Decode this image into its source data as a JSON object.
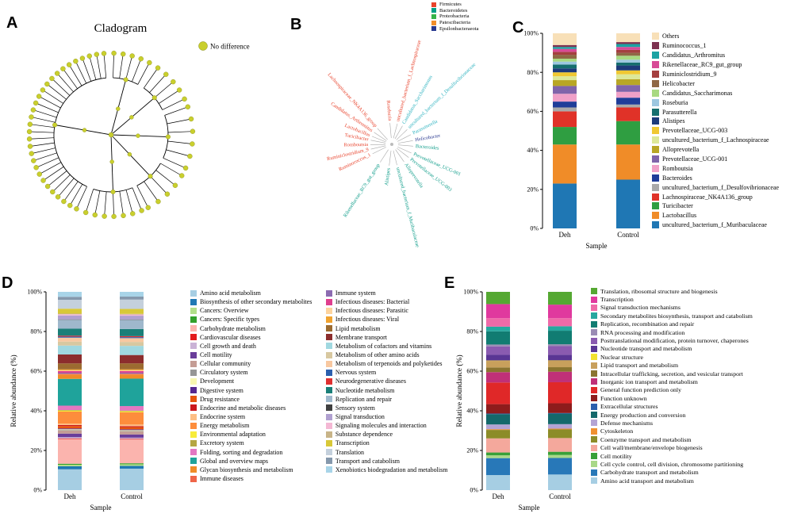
{
  "figure": {
    "panels": {
      "a": {
        "label": "A",
        "title": "Cladogram",
        "node_legend": {
          "label": "No difference",
          "color": "#c9cf2d"
        }
      },
      "b": {
        "label": "B",
        "phyla_legend": [
          {
            "label": "Firmicutes",
            "color": "#e8432c"
          },
          {
            "label": "Bacteroidetes",
            "color": "#00a087"
          },
          {
            "label": "Proteobacteria",
            "color": "#35b44a"
          },
          {
            "label": "Patescibacteria",
            "color": "#f28e2b"
          },
          {
            "label": "Epsilonbacteraeota",
            "color": "#28388f"
          }
        ],
        "taxa": [
          {
            "label": "uncultured_bacterium_f_Lachnospiraceae",
            "color": "#e8432c",
            "angle": 75
          },
          {
            "label": "Roseburia",
            "color": "#e8432c",
            "angle": 95
          },
          {
            "label": "Lachnospiraceae_NK4A136_group",
            "color": "#e8432c",
            "angle": 132
          },
          {
            "label": "Candidatus_Arthromitus",
            "color": "#e8432c",
            "angle": 146
          },
          {
            "label": "Lactobacillus",
            "color": "#e8432c",
            "angle": 158
          },
          {
            "label": "Turicibacter",
            "color": "#e8432c",
            "angle": 169
          },
          {
            "label": "Romboutsia",
            "color": "#e8432c",
            "angle": 181
          },
          {
            "label": "Ruminiclostridium_9",
            "color": "#e8432c",
            "angle": 193
          },
          {
            "label": "Ruminococcus_1",
            "color": "#e8432c",
            "angle": 206
          },
          {
            "label": "Candidatus_Saccharimonas",
            "color": "#2fb3c0",
            "angle": 60
          },
          {
            "label": "uncultured_bacterium_f_Desulfovibrionaceae",
            "color": "#2fb3c0",
            "angle": 44
          },
          {
            "label": "Parasutterella",
            "color": "#2fb3c0",
            "angle": 27
          },
          {
            "label": "Helicobacter",
            "color": "#28388f",
            "angle": 10
          },
          {
            "label": "Bacteroides",
            "color": "#0f9d8a",
            "angle": -5
          },
          {
            "label": "Prevotellaceae_UCG-001",
            "color": "#0f9d8a",
            "angle": -24
          },
          {
            "label": "Prevotellaceae_UCG-003",
            "color": "#0f9d8a",
            "angle": -38
          },
          {
            "label": "Alloprevotella",
            "color": "#0f9d8a",
            "angle": -55
          },
          {
            "label": "uncultured_bacterium_f_Muribaculaceae",
            "color": "#0f9d8a",
            "angle": -76
          },
          {
            "label": "Alistipes",
            "color": "#0f9d8a",
            "angle": -97
          },
          {
            "label": "Rikenellaceae_RC9_gut_group",
            "color": "#0f9d8a",
            "angle": -123
          }
        ]
      },
      "c": {
        "label": "C"
      },
      "d": {
        "label": "D"
      },
      "e": {
        "label": "E"
      }
    }
  },
  "chart_data": [
    {
      "id": "C",
      "type": "bar",
      "stacked": true,
      "stack_order": "reverse-legend",
      "xlabel": "Sample",
      "ylabel": "",
      "ylim": [
        0,
        100
      ],
      "yticks": [
        "0%",
        "20%",
        "40%",
        "60%",
        "80%",
        "100%"
      ],
      "samples": [
        "Deh",
        "Control"
      ],
      "categories": [
        {
          "label": "Others",
          "color": "#f8e0b8"
        },
        {
          "label": "Ruminococcus_1",
          "color": "#7d3150"
        },
        {
          "label": "Candidatus_Arthromitus",
          "color": "#1ba3a3"
        },
        {
          "label": "Rikenellaceae_RC9_gut_group",
          "color": "#d84a96"
        },
        {
          "label": "Ruminiclostridium_9",
          "color": "#a43f3f"
        },
        {
          "label": "Helicobacter",
          "color": "#8f6845"
        },
        {
          "label": "Candidatus_Saccharimonas",
          "color": "#a8d982"
        },
        {
          "label": "Roseburia",
          "color": "#9dc7e0"
        },
        {
          "label": "Parasutterella",
          "color": "#156e6e"
        },
        {
          "label": "Alistipes",
          "color": "#1d3a7a"
        },
        {
          "label": "Prevotellaceae_UCG-003",
          "color": "#f0c832"
        },
        {
          "label": "uncultured_bacterium_f_Lachnospiraceae",
          "color": "#dde898"
        },
        {
          "label": "Alloprevotella",
          "color": "#b8a625"
        },
        {
          "label": "Prevotellaceae_UCG-001",
          "color": "#8064aa"
        },
        {
          "label": "Romboutsia",
          "color": "#f0a0c8"
        },
        {
          "label": "Bacteroides",
          "color": "#1f3d99"
        },
        {
          "label": "uncultured_bacterium_f_Desulfovibrionaceae",
          "color": "#a9a9a9"
        },
        {
          "label": "Lachnospiraceae_NK4A136_group",
          "color": "#e03228"
        },
        {
          "label": "Turicibacter",
          "color": "#2f9e41"
        },
        {
          "label": "Lactobacillus",
          "color": "#f08c28"
        },
        {
          "label": "uncultured_bacterium_f_Muribaculaceae",
          "color": "#1f77b4"
        }
      ],
      "series": [
        {
          "name": "Deh",
          "values": [
            6,
            1,
            1,
            1.5,
            1.5,
            2,
            1.5,
            1.5,
            2,
            2,
            2,
            2,
            3,
            4,
            4,
            3,
            2,
            8,
            9,
            20,
            23
          ]
        },
        {
          "name": "Control",
          "values": [
            4.5,
            1,
            1.5,
            1.5,
            1.5,
            1.5,
            2,
            1.5,
            1.5,
            2.5,
            2,
            2.5,
            3,
            3.5,
            3,
            3.5,
            1.5,
            7,
            12,
            18,
            25
          ]
        }
      ]
    },
    {
      "id": "D",
      "type": "bar",
      "stacked": true,
      "stack_order": "legend",
      "xlabel": "Sample",
      "ylabel": "Relative abundance (%)",
      "ylim": [
        0,
        100
      ],
      "yticks": [
        "0%",
        "20%",
        "40%",
        "60%",
        "80%",
        "100%"
      ],
      "samples": [
        "Deh",
        "Control"
      ],
      "legend_columns": 2,
      "categories": [
        {
          "label": "Amino acid metabolism",
          "color": "#a6cee3"
        },
        {
          "label": "Biosynthesis of other secondary metabolites",
          "color": "#1f78b4"
        },
        {
          "label": "Cancers: Overview",
          "color": "#b2df8a"
        },
        {
          "label": "Cancers: Specific types",
          "color": "#33a02c"
        },
        {
          "label": "Carbohydrate metabolism",
          "color": "#fbb4ae"
        },
        {
          "label": "Cardiovascular diseases",
          "color": "#e31a1c"
        },
        {
          "label": "Cell growth and death",
          "color": "#cab2d6"
        },
        {
          "label": "Cell motility",
          "color": "#6a3d9a"
        },
        {
          "label": "Cellular community",
          "color": "#c49c94"
        },
        {
          "label": "Circulatory system",
          "color": "#969696"
        },
        {
          "label": "Development",
          "color": "#f7f7b0"
        },
        {
          "label": "Digestive system",
          "color": "#54278f"
        },
        {
          "label": "Drug resistance",
          "color": "#e6550d"
        },
        {
          "label": "Endocrine and metabolic diseases",
          "color": "#cb181d"
        },
        {
          "label": "Endocrine system",
          "color": "#fdbe85"
        },
        {
          "label": "Energy metabolism",
          "color": "#fd8d3c"
        },
        {
          "label": "Environmental adaptation",
          "color": "#f7ec3a"
        },
        {
          "label": "Excretory system",
          "color": "#b5a642"
        },
        {
          "label": "Folding, sorting and degradation",
          "color": "#e377c2"
        },
        {
          "label": "Global and overview maps",
          "color": "#1fa39b"
        },
        {
          "label": "Glycan biosynthesis and metabolism",
          "color": "#f08c28"
        },
        {
          "label": "Immune diseases",
          "color": "#ef6548"
        },
        {
          "label": "Immune system",
          "color": "#8c6bb1"
        },
        {
          "label": "Infectious diseases: Bacterial",
          "color": "#df3e8e"
        },
        {
          "label": "Infectious diseases: Parasitic",
          "color": "#fdd49e"
        },
        {
          "label": "Infectious diseases: Viral",
          "color": "#f0a330"
        },
        {
          "label": "Lipid metabolism",
          "color": "#9c6b30"
        },
        {
          "label": "Membrane transport",
          "color": "#8c2d2d"
        },
        {
          "label": "Metabolism of cofactors and vitamins",
          "color": "#a0d8e0"
        },
        {
          "label": "Metabolism of other amino acids",
          "color": "#d8c8a0"
        },
        {
          "label": "Metabolism of terpenoids and polyketides",
          "color": "#f8c8a0"
        },
        {
          "label": "Nervous system",
          "color": "#2b5fad"
        },
        {
          "label": "Neurodegenerative diseases",
          "color": "#e03030"
        },
        {
          "label": "Nucleotide metabolism",
          "color": "#1a7f78"
        },
        {
          "label": "Replication and repair",
          "color": "#9fb8cc"
        },
        {
          "label": "Sensory system",
          "color": "#404040"
        },
        {
          "label": "Signal transduction",
          "color": "#b0a0d0"
        },
        {
          "label": "Signaling molecules and interaction",
          "color": "#f4b8d4"
        },
        {
          "label": "Substance dependence",
          "color": "#c8b488"
        },
        {
          "label": "Transcription",
          "color": "#d8c838"
        },
        {
          "label": "Translation",
          "color": "#c4d0dc"
        },
        {
          "label": "Transport and catabolism",
          "color": "#8598ac"
        },
        {
          "label": "Xenobiotics biodegradation and metabolism",
          "color": "#a8d4e8"
        }
      ],
      "series": [
        {
          "name": "Deh",
          "values": [
            10.5,
            1.5,
            0.8,
            0.5,
            12.5,
            0.3,
            0.6,
            1.8,
            1.5,
            0.3,
            0.4,
            0.4,
            1.2,
            0.5,
            0.8,
            6.0,
            0.5,
            0.3,
            2.2,
            13.5,
            2.2,
            0.4,
            0.5,
            0.8,
            0.4,
            0.5,
            3.0,
            4.5,
            4.5,
            2.0,
            2.0,
            0.5,
            0.5,
            3.5,
            4.5,
            0.2,
            2.0,
            0.6,
            0.3,
            2.5,
            4.5,
            1.5,
            2.5
          ]
        },
        {
          "name": "Control",
          "values": [
            10.8,
            1.4,
            0.8,
            0.5,
            12.0,
            0.3,
            0.6,
            1.6,
            1.5,
            0.3,
            0.4,
            0.4,
            1.1,
            0.5,
            0.8,
            6.2,
            0.5,
            0.3,
            2.3,
            13.8,
            2.1,
            0.4,
            0.5,
            0.8,
            0.4,
            0.5,
            3.0,
            4.2,
            4.6,
            2.0,
            1.9,
            0.5,
            0.5,
            3.6,
            4.6,
            0.2,
            1.9,
            0.6,
            0.3,
            2.5,
            4.7,
            1.5,
            2.4
          ]
        }
      ]
    },
    {
      "id": "E",
      "type": "bar",
      "stacked": true,
      "stack_order": "reverse-legend",
      "xlabel": "Sample",
      "ylabel": "Relative abundance (%)",
      "ylim": [
        0,
        100
      ],
      "yticks": [
        "0%",
        "20%",
        "40%",
        "60%",
        "80%",
        "100%"
      ],
      "samples": [
        "Deh",
        "Control"
      ],
      "categories": [
        {
          "label": "Translation, ribosomal structure and biogenesis",
          "color": "#55a832"
        },
        {
          "label": "Transcription",
          "color": "#e0399e"
        },
        {
          "label": "Signal transduction mechanisms",
          "color": "#ef6aa8"
        },
        {
          "label": "Secondary metabolites biosynthesis, transport and catabolism",
          "color": "#27a89f"
        },
        {
          "label": "Replication, recombination and repair",
          "color": "#117c72"
        },
        {
          "label": "RNA processing and modification",
          "color": "#9a8cb4"
        },
        {
          "label": "Posttranslational modification, protein turnover, chaperones",
          "color": "#8a5bb0"
        },
        {
          "label": "Nucleotide transport and metabolism",
          "color": "#5a3694"
        },
        {
          "label": "Nuclear structure",
          "color": "#f2e130"
        },
        {
          "label": "Lipid transport and metabolism",
          "color": "#c8a05c"
        },
        {
          "label": "Intracellular trafficking, secretion, and vesicular transport",
          "color": "#8a7430"
        },
        {
          "label": "Inorganic ion transport and metabolism",
          "color": "#c03078"
        },
        {
          "label": "General function prediction only",
          "color": "#e02828"
        },
        {
          "label": "Function unknown",
          "color": "#8e1c1c"
        },
        {
          "label": "Extracellular structures",
          "color": "#2b5fad"
        },
        {
          "label": "Energy production and conversion",
          "color": "#15686b"
        },
        {
          "label": "Defense mechanisms",
          "color": "#b4a4d4"
        },
        {
          "label": "Cytoskeleton",
          "color": "#f09030"
        },
        {
          "label": "Coenzyme transport and metabolism",
          "color": "#8c8c28"
        },
        {
          "label": "Cell wall/membrane/envelope biogenesis",
          "color": "#f4a89c"
        },
        {
          "label": "Cell motility",
          "color": "#38a038"
        },
        {
          "label": "Cell cycle control, cell division, chromosome partitioning",
          "color": "#a8d888"
        },
        {
          "label": "Carbohydrate transport and metabolism",
          "color": "#2878b8"
        },
        {
          "label": "Amino acid transport and metabolism",
          "color": "#a6cee3"
        }
      ],
      "series": [
        {
          "name": "Deh",
          "values": [
            6.5,
            7.5,
            4.5,
            2.5,
            7.0,
            1.0,
            4.5,
            3.0,
            0.2,
            3.5,
            2.5,
            5.5,
            11.5,
            5.0,
            0.3,
            5.5,
            2.5,
            0.4,
            4.5,
            7.5,
            1.5,
            1.5,
            9.0,
            8.0
          ]
        },
        {
          "name": "Control",
          "values": [
            6.8,
            7.2,
            4.3,
            2.4,
            7.2,
            1.0,
            4.6,
            3.0,
            0.2,
            3.4,
            2.4,
            5.6,
            11.2,
            5.2,
            0.3,
            5.6,
            2.4,
            0.4,
            4.6,
            7.3,
            1.7,
            1.6,
            8.8,
            8.3
          ]
        }
      ]
    }
  ]
}
